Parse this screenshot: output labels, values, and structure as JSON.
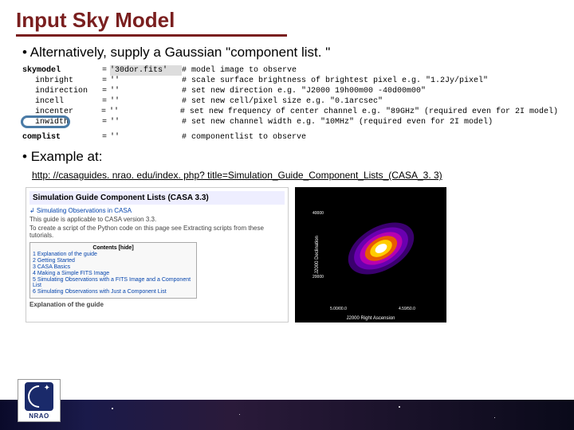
{
  "title": "Input Sky Model",
  "bullet1": "Alternatively, supply a Gaussian \"component list. \"",
  "bullet2": "Example at:",
  "link": "http: //casaguides. nrao. edu/index. php? title=Simulation_Guide_Component_Lists_(CASA_3. 3)",
  "code": {
    "top": {
      "param": "skymodel",
      "eq": "=",
      "val": "'30dor.fits'",
      "comment": "#  model image to observe"
    },
    "rows": [
      {
        "param": "inbright",
        "eq": "=",
        "val": "''",
        "comment": "#  scale surface brightness of brightest pixel e.g. \"1.2Jy/pixel\""
      },
      {
        "param": "indirection",
        "eq": "=",
        "val": "''",
        "comment": "#  set new direction e.g. \"J2000 19h00m00 -40d00m00\""
      },
      {
        "param": "incell",
        "eq": "=",
        "val": "''",
        "comment": "#  set new cell/pixel size e.g. \"0.1arcsec\""
      },
      {
        "param": "incenter",
        "eq": "=",
        "val": "''",
        "comment": "#  set new frequency of center channel e.g. \"89GHz\" (required even for 2I model)"
      },
      {
        "param": "inwidth",
        "eq": "=",
        "val": "''",
        "comment": "#  set new channel width e.g. \"10MHz\" (required even for 2I model)"
      }
    ],
    "bottom": {
      "param": "complist",
      "eq": "=",
      "val": "''",
      "comment": "#  componentlist to observe"
    }
  },
  "wiki": {
    "title": "Simulation Guide Component Lists (CASA 3.3)",
    "breadcrumb": "↲ Simulating Observations in CASA",
    "note": "This guide is applicable to CASA version 3.3.",
    "note2": "To create a script of the Python code on this page see Extracting scripts from these tutorials.",
    "toc_h": "Contents [hide]",
    "toc": [
      "1 Explanation of the guide",
      "2 Getting Started",
      "3 CASA Basics",
      "4 Making a Simple FITS Image",
      "5 Simulating Observations with a FITS Image and a Component List",
      "6 Simulating Observations with Just a Component List"
    ],
    "foot": "Explanation of the guide"
  },
  "plot": {
    "ylabel": "J2000 Declination",
    "xlabel": "J2000 Right Ascension",
    "ytick_top": "40000",
    "ytick_bot": "20000",
    "xtick_l": "5.00/00.0",
    "xtick_r": "4.59/50.0",
    "ellipses": [
      {
        "w": 90,
        "h": 54,
        "bg": "#3a006e"
      },
      {
        "w": 74,
        "h": 44,
        "bg": "#6a00b0"
      },
      {
        "w": 58,
        "h": 34,
        "bg": "#b800b0"
      },
      {
        "w": 44,
        "h": 26,
        "bg": "#e85c00"
      },
      {
        "w": 30,
        "h": 18,
        "bg": "#ffcc00"
      },
      {
        "w": 16,
        "h": 10,
        "bg": "#ffffff"
      }
    ]
  },
  "logo_text": "NRAO"
}
